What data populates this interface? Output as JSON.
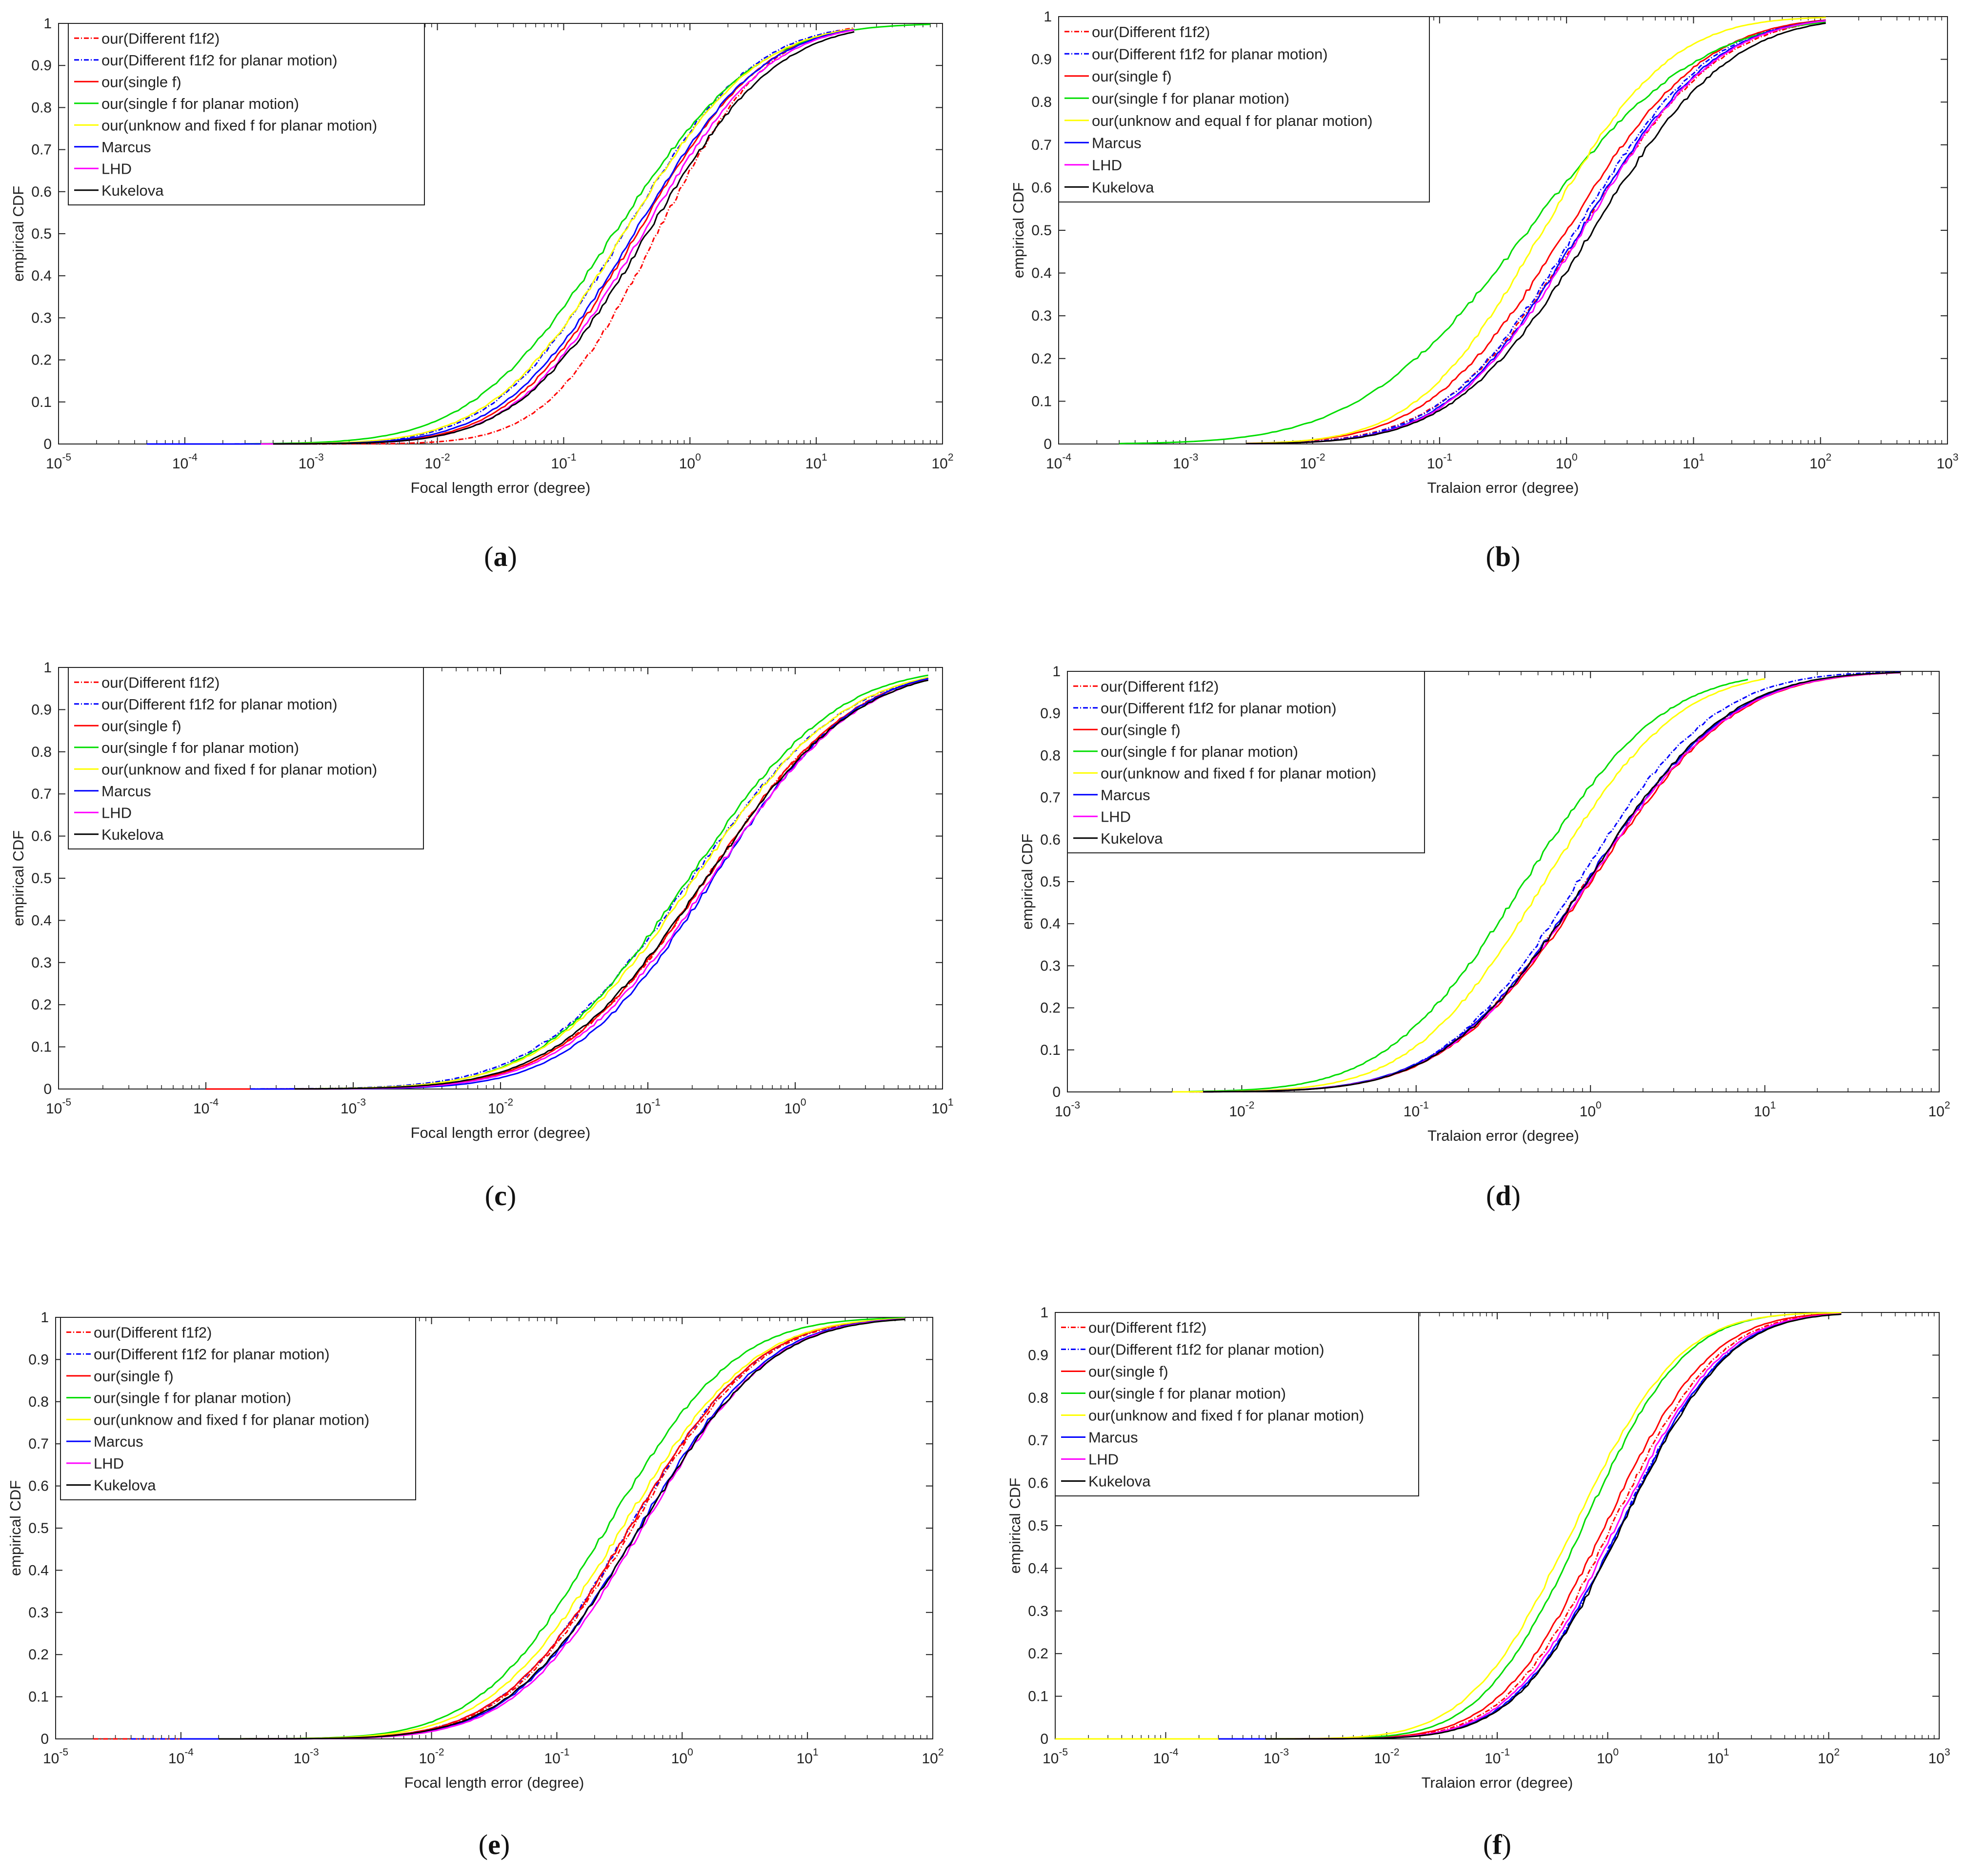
{
  "figure": {
    "ylabel": "empirical CDF",
    "series_colors": {
      "our(Different f1f2)": "#ff0000",
      "our(Different f1f2 for planar motion)": "#0000ff",
      "our(single f)": "#ff0000",
      "our(single f for planar motion)": "#00dd00",
      "our(unknow and fixed f for planar motion)": "#ffff00",
      "our(unknow and equal f for planar motion)": "#ffff00",
      "Marcus": "#0000ff",
      "LHD": "#ff00ff",
      "Kukelova": "#000000"
    }
  },
  "chart_data": [
    {
      "panel": "a",
      "type": "line",
      "title": "",
      "xlabel": "Focal length error (degree)",
      "ylabel": "empirical CDF",
      "xscale": "log",
      "xlim_exp": [
        -5,
        2
      ],
      "ylim": [
        0,
        1
      ],
      "yticks": [
        "0",
        "0.1",
        "0.2",
        "0.3",
        "0.4",
        "0.5",
        "0.6",
        "0.7",
        "0.8",
        "0.9",
        "1"
      ],
      "legend": "top-left",
      "series": [
        {
          "name": "our(Different f1f2)",
          "median": 0.55,
          "spread": 0.68,
          "start": 0.0006,
          "end": 20
        },
        {
          "name": "our(Different f1f2 for planar motion)",
          "median": 0.3,
          "spread": 0.8,
          "start": 5e-05,
          "end": 15
        },
        {
          "name": "our(single f)",
          "median": 0.38,
          "spread": 0.78,
          "start": 0.0004,
          "end": 20
        },
        {
          "name": "our(single f for planar motion)",
          "median": 0.25,
          "spread": 0.88,
          "start": 0.0003,
          "end": 80
        },
        {
          "name": "our(unknow and fixed f for planar motion)",
          "median": 0.3,
          "spread": 0.82,
          "start": 0.0003,
          "end": 20
        },
        {
          "name": "Marcus",
          "median": 0.36,
          "spread": 0.8,
          "start": 5e-05,
          "end": 20
        },
        {
          "name": "LHD",
          "median": 0.42,
          "spread": 0.78,
          "start": 0.0004,
          "end": 20
        },
        {
          "name": "Kukelova",
          "median": 0.46,
          "spread": 0.8,
          "start": 0.0005,
          "end": 20
        }
      ]
    },
    {
      "panel": "b",
      "type": "line",
      "title": "",
      "xlabel": "Tralaion error (degree)",
      "ylabel": "empirical CDF",
      "xscale": "log",
      "xlim_exp": [
        -4,
        3
      ],
      "ylim": [
        0,
        1
      ],
      "yticks": [
        "0",
        "0.1",
        "0.2",
        "0.3",
        "0.4",
        "0.5",
        "0.6",
        "0.7",
        "0.8",
        "0.9",
        "1"
      ],
      "legend": "top-left",
      "series": [
        {
          "name": "our(Different f1f2)",
          "median": 1.3,
          "spread": 0.85,
          "start": 0.003,
          "end": 110
        },
        {
          "name": "our(Different f1f2 for planar motion)",
          "median": 1.2,
          "spread": 0.82,
          "start": 0.003,
          "end": 110
        },
        {
          "name": "our(single f)",
          "median": 1.0,
          "spread": 0.85,
          "start": 0.003,
          "end": 110
        },
        {
          "name": "our(single f for planar motion)",
          "median": 0.5,
          "spread": 1.05,
          "start": 0.0003,
          "end": 110
        },
        {
          "name": "our(unknow and equal f for planar motion)",
          "median": 0.65,
          "spread": 0.78,
          "start": 0.003,
          "end": 110
        },
        {
          "name": "Marcus",
          "median": 1.3,
          "spread": 0.82,
          "start": 0.003,
          "end": 110
        },
        {
          "name": "LHD",
          "median": 1.35,
          "spread": 0.82,
          "start": 0.003,
          "end": 110
        },
        {
          "name": "Kukelova",
          "median": 1.6,
          "spread": 0.85,
          "start": 0.003,
          "end": 110
        }
      ]
    },
    {
      "panel": "c",
      "type": "line",
      "title": "",
      "xlabel": "Focal length error (degree)",
      "ylabel": "empirical CDF",
      "xscale": "log",
      "xlim_exp": [
        -5,
        1
      ],
      "ylim": [
        0,
        1
      ],
      "yticks": [
        "0",
        "0.1",
        "0.2",
        "0.3",
        "0.4",
        "0.5",
        "0.6",
        "0.7",
        "0.8",
        "0.9",
        "1"
      ],
      "legend": "top-left",
      "series": [
        {
          "name": "our(Different f1f2)",
          "median": 0.25,
          "spread": 0.78,
          "start": 0.0001,
          "end": 8
        },
        {
          "name": "our(Different f1f2 for planar motion)",
          "median": 0.2,
          "spread": 0.82,
          "start": 0.0002,
          "end": 8
        },
        {
          "name": "our(single f)",
          "median": 0.25,
          "spread": 0.78,
          "start": 0.0001,
          "end": 8
        },
        {
          "name": "our(single f for planar motion)",
          "median": 0.19,
          "spread": 0.78,
          "start": 0.0004,
          "end": 8
        },
        {
          "name": "our(unknow and fixed f for planar motion)",
          "median": 0.21,
          "spread": 0.8,
          "start": 0.0004,
          "end": 8
        },
        {
          "name": "Marcus",
          "median": 0.28,
          "spread": 0.75,
          "start": 0.0002,
          "end": 8
        },
        {
          "name": "LHD",
          "median": 0.27,
          "spread": 0.78,
          "start": 0.0004,
          "end": 8
        },
        {
          "name": "Kukelova",
          "median": 0.25,
          "spread": 0.8,
          "start": 0.0004,
          "end": 8
        }
      ]
    },
    {
      "panel": "d",
      "type": "line",
      "title": "",
      "xlabel": "Tralaion error (degree)",
      "ylabel": "empirical CDF",
      "xscale": "log",
      "xlim_exp": [
        -3,
        2
      ],
      "ylim": [
        0,
        1
      ],
      "yticks": [
        "0",
        "0.1",
        "0.2",
        "0.3",
        "0.4",
        "0.5",
        "0.6",
        "0.7",
        "0.8",
        "0.9",
        "1"
      ],
      "legend": "top-left",
      "series": [
        {
          "name": "our(Different f1f2)",
          "median": 0.95,
          "spread": 0.65,
          "start": 0.005,
          "end": 11
        },
        {
          "name": "our(Different f1f2 for planar motion)",
          "median": 0.85,
          "spread": 0.62,
          "start": 0.005,
          "end": 60
        },
        {
          "name": "our(single f)",
          "median": 1.0,
          "spread": 0.65,
          "start": 0.005,
          "end": 60
        },
        {
          "name": "our(single f for planar motion)",
          "median": 0.42,
          "spread": 0.62,
          "start": 0.005,
          "end": 8
        },
        {
          "name": "our(unknow and fixed f for planar motion)",
          "median": 0.55,
          "spread": 0.6,
          "start": 0.004,
          "end": 10
        },
        {
          "name": "Marcus",
          "median": 0.95,
          "spread": 0.65,
          "start": 0.006,
          "end": 60
        },
        {
          "name": "LHD",
          "median": 0.98,
          "spread": 0.65,
          "start": 0.006,
          "end": 60
        },
        {
          "name": "Kukelova",
          "median": 0.95,
          "spread": 0.64,
          "start": 0.006,
          "end": 60
        }
      ]
    },
    {
      "panel": "e",
      "type": "line",
      "title": "",
      "xlabel": "Focal length error (degree)",
      "ylabel": "empirical CDF",
      "xscale": "log",
      "xlim_exp": [
        -5,
        2
      ],
      "ylim": [
        0,
        1
      ],
      "yticks": [
        "0",
        "0.1",
        "0.2",
        "0.3",
        "0.4",
        "0.5",
        "0.6",
        "0.7",
        "0.8",
        "0.9",
        "1"
      ],
      "legend": "top-left",
      "series": [
        {
          "name": "our(Different f1f2)",
          "median": 0.4,
          "spread": 0.8,
          "start": 2e-05,
          "end": 60
        },
        {
          "name": "our(Different f1f2 for planar motion)",
          "median": 0.38,
          "spread": 0.8,
          "start": 4e-05,
          "end": 60
        },
        {
          "name": "our(single f)",
          "median": 0.38,
          "spread": 0.8,
          "start": 0.0001,
          "end": 60
        },
        {
          "name": "our(single f for planar motion)",
          "median": 0.25,
          "spread": 0.8,
          "start": 0.0003,
          "end": 60
        },
        {
          "name": "our(unknow and fixed f for planar motion)",
          "median": 0.33,
          "spread": 0.82,
          "start": 0.0003,
          "end": 60
        },
        {
          "name": "Marcus",
          "median": 0.45,
          "spread": 0.8,
          "start": 0.0001,
          "end": 60
        },
        {
          "name": "LHD",
          "median": 0.48,
          "spread": 0.8,
          "start": 0.0002,
          "end": 60
        },
        {
          "name": "Kukelova",
          "median": 0.46,
          "spread": 0.82,
          "start": 0.0002,
          "end": 60
        }
      ]
    },
    {
      "panel": "f",
      "type": "line",
      "title": "",
      "xlabel": "Tralaion error (degree)",
      "ylabel": "empirical CDF",
      "xscale": "log",
      "xlim_exp": [
        -5,
        3
      ],
      "ylim": [
        0,
        1
      ],
      "yticks": [
        "0",
        "0.1",
        "0.2",
        "0.3",
        "0.4",
        "0.5",
        "0.6",
        "0.7",
        "0.8",
        "0.9",
        "1"
      ],
      "legend": "top-left",
      "series": [
        {
          "name": "our(Different f1f2)",
          "median": 1.1,
          "spread": 0.75,
          "start": 0.0008,
          "end": 130
        },
        {
          "name": "our(Different f1f2 for planar motion)",
          "median": 1.3,
          "spread": 0.75,
          "start": 0.0005,
          "end": 130
        },
        {
          "name": "our(single f)",
          "median": 0.95,
          "spread": 0.75,
          "start": 0.0008,
          "end": 130
        },
        {
          "name": "our(single f for planar motion)",
          "median": 0.6,
          "spread": 0.72,
          "start": 0.0005,
          "end": 130
        },
        {
          "name": "our(unknow and fixed f for planar motion)",
          "median": 0.5,
          "spread": 0.75,
          "start": 1e-05,
          "end": 130
        },
        {
          "name": "Marcus",
          "median": 1.3,
          "spread": 0.75,
          "start": 0.0003,
          "end": 130
        },
        {
          "name": "LHD",
          "median": 1.2,
          "spread": 0.75,
          "start": 0.0008,
          "end": 130
        },
        {
          "name": "Kukelova",
          "median": 1.35,
          "spread": 0.75,
          "start": 0.0008,
          "end": 130
        }
      ]
    }
  ]
}
